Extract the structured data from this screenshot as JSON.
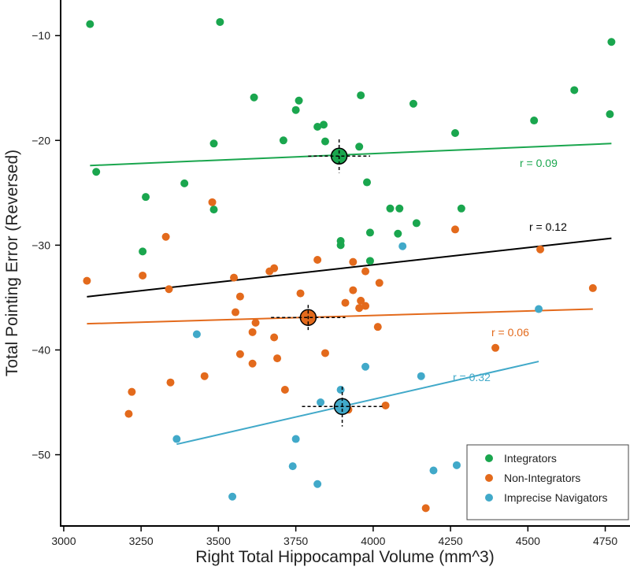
{
  "chart_data": {
    "type": "scatter",
    "xlabel": "Right Total Hippocampal Volume (mm^3)",
    "ylabel": "Total Pointing Error (Reversed)",
    "xlim": [
      2990,
      4830
    ],
    "ylim": [
      -56.8,
      -6.6
    ],
    "x_ticks": [
      3000,
      3250,
      3500,
      3750,
      4000,
      4250,
      4500,
      4750
    ],
    "x_tick_labels": [
      "3000",
      "3250",
      "3500",
      "3750",
      "4000",
      "4250",
      "4500",
      "4750"
    ],
    "y_ticks": [
      -50,
      -40,
      -30,
      -20,
      -10
    ],
    "y_tick_labels": [
      "−50",
      "−40",
      "−30",
      "−20",
      "−10"
    ],
    "legend_position": "bottom-right",
    "series": [
      {
        "name": "Integrators",
        "color": "#1aa64e",
        "r_label": "r = 0.09",
        "regression": {
          "x": [
            3085,
            4770
          ],
          "y": [
            -22.4,
            -20.3
          ]
        },
        "mean": {
          "x": 3890,
          "y": -21.5,
          "x_err": 100,
          "y_err": 1.6
        },
        "points": [
          [
            3085,
            -8.9
          ],
          [
            3505,
            -8.7
          ],
          [
            4770,
            -10.6
          ],
          [
            4650,
            -15.2
          ],
          [
            3960,
            -15.7
          ],
          [
            3760,
            -16.2
          ],
          [
            3615,
            -15.9
          ],
          [
            4130,
            -16.5
          ],
          [
            3750,
            -17.1
          ],
          [
            4765,
            -17.5
          ],
          [
            4520,
            -18.1
          ],
          [
            3840,
            -18.5
          ],
          [
            3820,
            -18.7
          ],
          [
            4265,
            -19.3
          ],
          [
            3710,
            -20.0
          ],
          [
            3845,
            -20.1
          ],
          [
            3485,
            -20.3
          ],
          [
            3955,
            -20.6
          ],
          [
            3105,
            -23.0
          ],
          [
            3390,
            -24.1
          ],
          [
            3980,
            -24.0
          ],
          [
            3265,
            -25.4
          ],
          [
            3485,
            -26.6
          ],
          [
            4055,
            -26.5
          ],
          [
            4085,
            -26.5
          ],
          [
            4285,
            -26.5
          ],
          [
            4140,
            -27.9
          ],
          [
            3990,
            -28.8
          ],
          [
            4080,
            -28.9
          ],
          [
            3895,
            -29.6
          ],
          [
            3895,
            -30.0
          ],
          [
            3255,
            -30.6
          ],
          [
            3990,
            -31.5
          ]
        ]
      },
      {
        "name": "Non-Integrators",
        "color": "#e36a1c",
        "r_label": "r = 0.06",
        "regression": {
          "x": [
            3075,
            4710
          ],
          "y": [
            -37.5,
            -36.1
          ]
        },
        "mean": {
          "x": 3790,
          "y": -36.9,
          "x_err": 120,
          "y_err": 1.2
        },
        "points": [
          [
            3480,
            -25.9
          ],
          [
            4265,
            -28.5
          ],
          [
            3330,
            -29.2
          ],
          [
            4540,
            -30.4
          ],
          [
            3820,
            -31.4
          ],
          [
            3935,
            -31.6
          ],
          [
            3680,
            -32.2
          ],
          [
            3665,
            -32.5
          ],
          [
            3255,
            -32.9
          ],
          [
            3075,
            -33.4
          ],
          [
            3550,
            -33.1
          ],
          [
            3975,
            -32.5
          ],
          [
            4020,
            -33.6
          ],
          [
            3935,
            -34.3
          ],
          [
            3340,
            -34.2
          ],
          [
            4710,
            -34.1
          ],
          [
            3765,
            -34.6
          ],
          [
            3570,
            -34.9
          ],
          [
            3910,
            -35.5
          ],
          [
            3975,
            -35.8
          ],
          [
            3955,
            -36.0
          ],
          [
            3960,
            -35.3
          ],
          [
            3555,
            -36.4
          ],
          [
            3620,
            -37.4
          ],
          [
            4015,
            -37.8
          ],
          [
            3610,
            -38.3
          ],
          [
            3680,
            -38.8
          ],
          [
            4395,
            -39.8
          ],
          [
            3845,
            -40.3
          ],
          [
            3570,
            -40.4
          ],
          [
            3690,
            -40.8
          ],
          [
            3610,
            -41.3
          ],
          [
            3455,
            -42.5
          ],
          [
            3715,
            -43.8
          ],
          [
            3220,
            -44.0
          ],
          [
            3345,
            -43.1
          ],
          [
            4040,
            -45.3
          ],
          [
            3920,
            -45.7
          ],
          [
            3210,
            -46.1
          ],
          [
            4170,
            -55.1
          ]
        ]
      },
      {
        "name": "Imprecise Navigators",
        "color": "#41a9c9",
        "r_label": "r = 0.32",
        "regression": {
          "x": [
            3365,
            4535
          ],
          "y": [
            -49.0,
            -41.1
          ]
        },
        "mean": {
          "x": 3900,
          "y": -45.4,
          "x_err": 130,
          "y_err": 1.9
        },
        "points": [
          [
            4095,
            -30.1
          ],
          [
            4535,
            -36.1
          ],
          [
            3430,
            -38.5
          ],
          [
            3975,
            -41.6
          ],
          [
            4155,
            -42.5
          ],
          [
            3895,
            -43.8
          ],
          [
            3830,
            -45.0
          ],
          [
            3365,
            -48.5
          ],
          [
            3750,
            -48.5
          ],
          [
            3740,
            -51.1
          ],
          [
            4270,
            -51.0
          ],
          [
            4195,
            -51.5
          ],
          [
            3820,
            -52.8
          ],
          [
            3545,
            -54.0
          ]
        ]
      }
    ]
  }
}
